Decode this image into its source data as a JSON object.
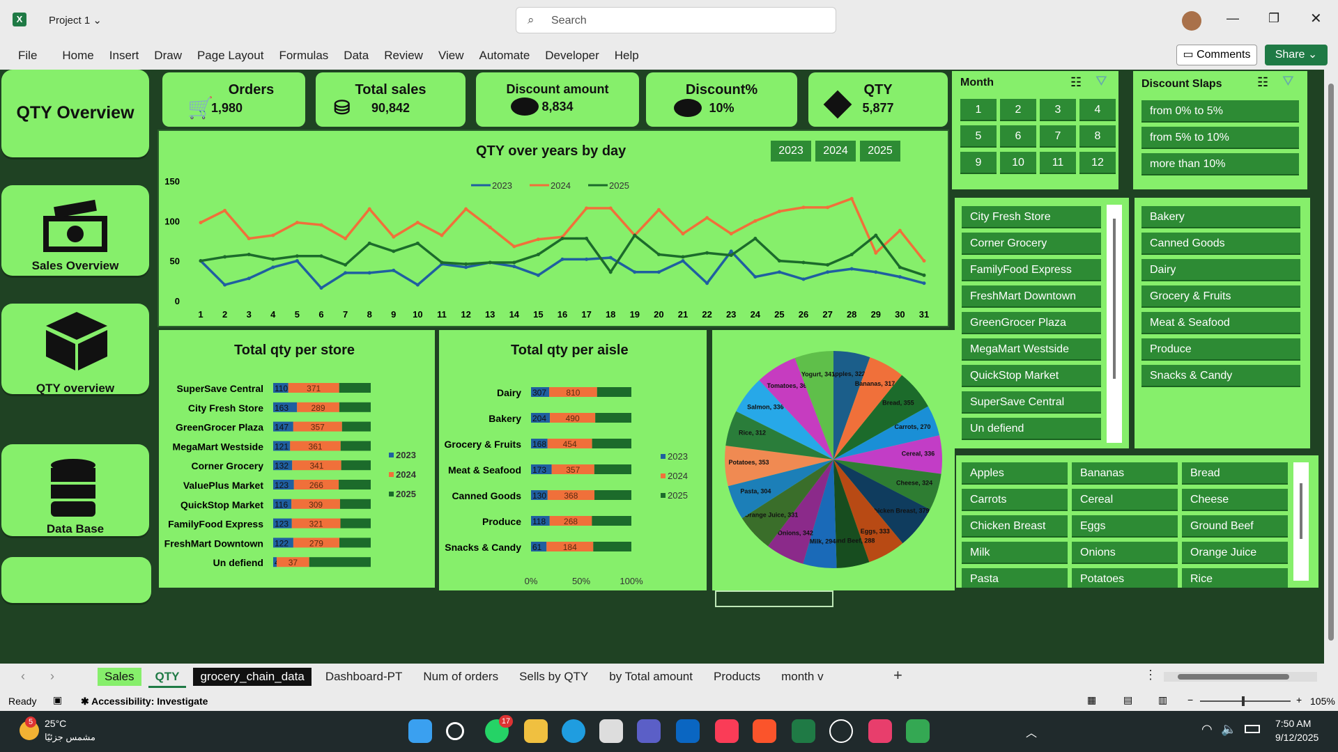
{
  "window": {
    "doc_title": "Project 1",
    "search_placeholder": "Search",
    "comments": "Comments",
    "share": "Share"
  },
  "menu": [
    "File",
    "Home",
    "Insert",
    "Draw",
    "Page Layout",
    "Formulas",
    "Data",
    "Review",
    "View",
    "Automate",
    "Developer",
    "Help"
  ],
  "nav": {
    "qty_overview": "QTY Overview",
    "sales_overview": "Sales Overview",
    "qty_overview_btn": "QTY overview",
    "data_base": "Data Base"
  },
  "kpis": {
    "orders": {
      "label": "Orders",
      "value": "1,980"
    },
    "total_sales": {
      "label": "Total sales",
      "value": "90,842"
    },
    "discount_amount": {
      "label": "Discount amount",
      "value": "8,834"
    },
    "discount_pct": {
      "label": "Discount%",
      "value": "10%"
    },
    "qty": {
      "label": "QTY",
      "value": "5,877"
    }
  },
  "year_buttons": [
    "2023",
    "2024",
    "2025"
  ],
  "month_slicer": {
    "title": "Month",
    "items": [
      "1",
      "2",
      "3",
      "4",
      "5",
      "6",
      "7",
      "8",
      "9",
      "10",
      "11",
      "12"
    ]
  },
  "discount_slicer": {
    "title": "Discount Slaps",
    "items": [
      "from 0% to 5%",
      "from 5% to 10%",
      "more than 10%"
    ]
  },
  "store_slicer": {
    "items": [
      "City Fresh Store",
      "Corner Grocery",
      "FamilyFood Express",
      "FreshMart Downtown",
      "GreenGrocer Plaza",
      "MegaMart Westside",
      "QuickStop Market",
      "SuperSave Central",
      "Un defiend"
    ]
  },
  "aisle_slicer": {
    "items": [
      "Bakery",
      "Canned Goods",
      "Dairy",
      "Grocery & Fruits",
      "Meat & Seafood",
      "Produce",
      "Snacks & Candy"
    ]
  },
  "product_slicer": {
    "items": [
      "Apples",
      "Bananas",
      "Bread",
      "Carrots",
      "Cereal",
      "Cheese",
      "Chicken Breast",
      "Eggs",
      "Ground Beef",
      "Milk",
      "Onions",
      "Orange Juice",
      "Pasta",
      "Potatoes",
      "Rice"
    ]
  },
  "colors": {
    "c2023": "#1f5fa0",
    "c2024": "#f0703a",
    "c2025": "#1c6b2b",
    "panel": "#86ef6b",
    "dark": "#1f4223",
    "button": "#2d8b34"
  },
  "chart_data": [
    {
      "type": "line",
      "title": "QTY over years by day",
      "x": [
        1,
        2,
        3,
        4,
        5,
        6,
        7,
        8,
        9,
        10,
        11,
        12,
        13,
        14,
        15,
        16,
        17,
        18,
        19,
        20,
        21,
        22,
        23,
        24,
        25,
        26,
        27,
        28,
        29,
        30,
        31
      ],
      "ylim": [
        0,
        150
      ],
      "yticks": [
        0,
        50,
        100,
        150
      ],
      "legend": "top",
      "series": [
        {
          "name": "2023",
          "values": [
            50,
            20,
            28,
            42,
            50,
            16,
            35,
            35,
            38,
            20,
            46,
            42,
            48,
            43,
            32,
            52,
            52,
            54,
            36,
            36,
            50,
            22,
            62,
            30,
            36,
            27,
            36,
            40,
            36,
            30,
            22
          ]
        },
        {
          "name": "2024",
          "values": [
            98,
            113,
            78,
            82,
            98,
            95,
            78,
            115,
            80,
            98,
            82,
            115,
            92,
            68,
            77,
            80,
            116,
            116,
            82,
            114,
            84,
            104,
            84,
            100,
            112,
            117,
            117,
            128,
            60,
            88,
            50
          ]
        },
        {
          "name": "2025",
          "values": [
            50,
            55,
            58,
            52,
            56,
            56,
            45,
            72,
            62,
            72,
            48,
            46,
            48,
            48,
            58,
            78,
            78,
            36,
            82,
            58,
            55,
            60,
            57,
            78,
            50,
            48,
            45,
            58,
            82,
            42,
            32
          ]
        }
      ]
    },
    {
      "type": "bar",
      "title": "Total qty per store",
      "stacked": "100%",
      "categories": [
        "SuperSave Central",
        "City Fresh Store",
        "GreenGrocer Plaza",
        "MegaMart Westside",
        "Corner Grocery",
        "ValuePlus Market",
        "QuickStop Market",
        "FamilyFood Express",
        "FreshMart Downtown",
        "Un defiend"
      ],
      "series": [
        {
          "name": "2023",
          "values": [
            110,
            163,
            147,
            121,
            132,
            123,
            116,
            123,
            122,
            4
          ]
        },
        {
          "name": "2024",
          "values": [
            371,
            289,
            357,
            361,
            341,
            266,
            309,
            321,
            279,
            37
          ]
        },
        {
          "name": "2025",
          "values": [
            230,
            215,
            210,
            215,
            205,
            190,
            195,
            200,
            190,
            70
          ]
        }
      ],
      "legend": "right"
    },
    {
      "type": "bar",
      "title": "Total qty per aisle",
      "stacked": "100%",
      "categories": [
        "Dairy",
        "Bakery",
        "Grocery & Fruits",
        "Meat & Seafood",
        "Canned Goods",
        "Produce",
        "Snacks & Candy"
      ],
      "series": [
        {
          "name": "2023",
          "values": [
            307,
            204,
            168,
            173,
            130,
            118,
            61
          ]
        },
        {
          "name": "2024",
          "values": [
            810,
            490,
            454,
            357,
            368,
            268,
            184
          ]
        },
        {
          "name": "2025",
          "values": [
            580,
            390,
            400,
            310,
            290,
            250,
            150
          ]
        }
      ],
      "xticks": [
        "0%",
        "50%",
        "100%"
      ],
      "legend": "right"
    },
    {
      "type": "pie",
      "labels": [
        "Apples, 322",
        "Bananas, 317",
        "Bread, 355",
        "Carrots, 270",
        "Cereal, 336",
        "Cheese, 324",
        "Chicken Breast, 379",
        "Eggs, 333",
        "Ground Beef, 288",
        "Milk, 294",
        "Onions, 342",
        "Orange Juice, 331",
        "Pasta, 304",
        "Potatoes, 353",
        "Rice, 312",
        "Salmon, 336",
        "Tomatoes, 366",
        "Yogurt, 341"
      ],
      "values": [
        322,
        317,
        355,
        270,
        336,
        324,
        379,
        333,
        288,
        294,
        342,
        331,
        304,
        353,
        312,
        336,
        366,
        341
      ],
      "colors": [
        "#1b5e8a",
        "#f0703a",
        "#1c6b2b",
        "#1a8fd6",
        "#c23dc6",
        "#2e7d32",
        "#0f3c5e",
        "#b84a14",
        "#174d1f",
        "#1a6ab8",
        "#8b2a8a",
        "#3a6e2a",
        "#1c7fb8",
        "#f08a52",
        "#2a7d3a",
        "#27a8e8",
        "#c63cc0",
        "#5fbf4a"
      ]
    }
  ],
  "sheet_tabs": [
    "Sales",
    "QTY",
    "grocery_chain_data",
    "Dashboard-PT",
    "Num of orders",
    "Sells by QTY",
    "by Total amount",
    "Products",
    "month v"
  ],
  "status": {
    "ready": "Ready",
    "accessibility": "Accessibility: Investigate",
    "zoom": "105%"
  },
  "taskbar": {
    "temp": "25°C",
    "weather": "مشمس جزئيًا",
    "time": "7:50 AM",
    "date": "9/12/2025",
    "badge_whatsapp": "17",
    "badge_weather": "5"
  }
}
